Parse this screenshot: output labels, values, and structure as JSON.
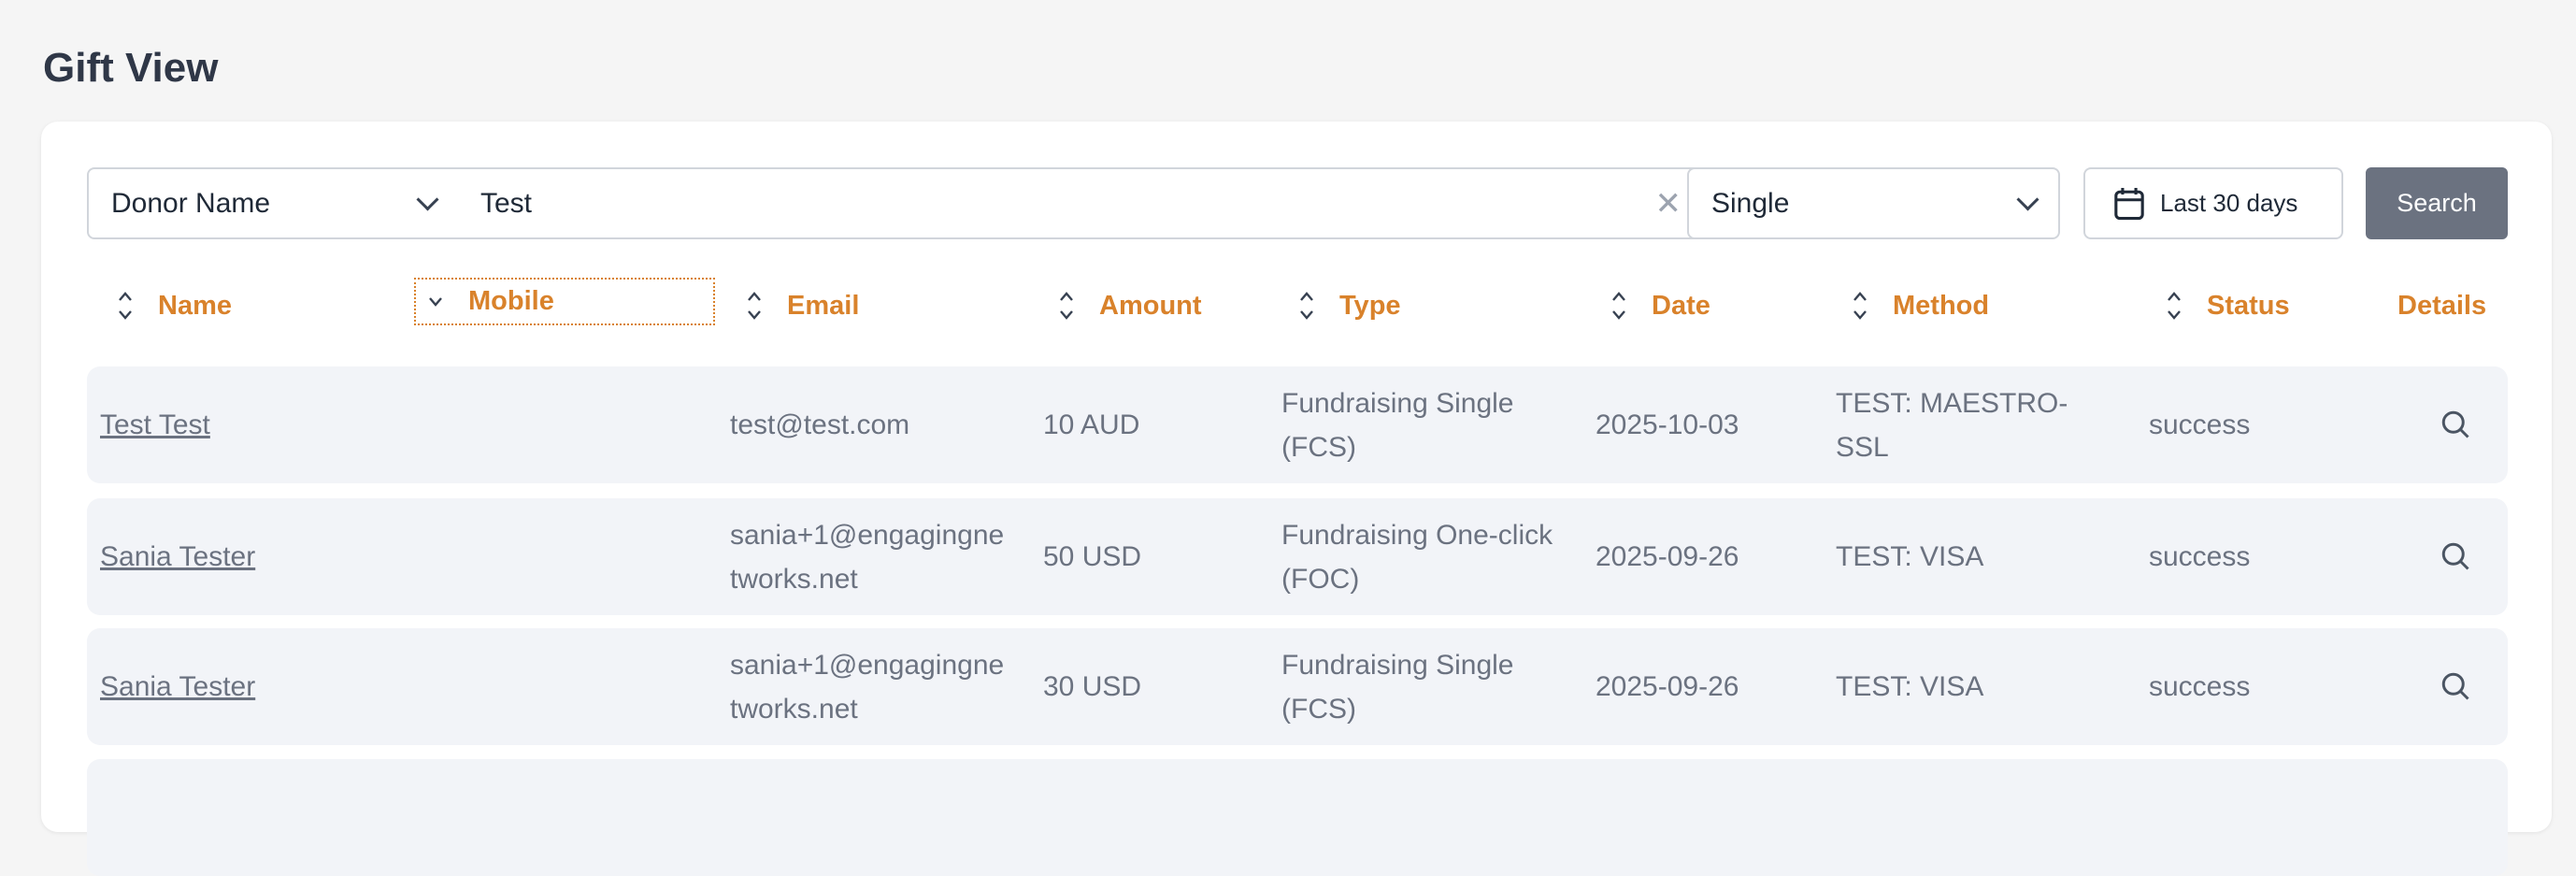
{
  "page": {
    "title": "Gift View"
  },
  "filters": {
    "field_select": "Donor Name",
    "query": "Test",
    "type_select": "Single",
    "date_range": "Last 30 days",
    "search_label": "Search"
  },
  "table": {
    "columns": [
      "Name",
      "Mobile",
      "Email",
      "Amount",
      "Type",
      "Date",
      "Method",
      "Status",
      "Details"
    ],
    "rows": [
      {
        "name": "Test Test",
        "mobile": "",
        "email": "test@test.com",
        "amount": "10 AUD",
        "type": "Fundraising Single (FCS)",
        "date": "2025-10-03",
        "method": "TEST: MAESTRO-SSL",
        "status": "success"
      },
      {
        "name": "Sania Tester",
        "mobile": "",
        "email": "sania+1@engagingne tworks.net",
        "amount": "50 USD",
        "type": "Fundraising One-click (FOC)",
        "date": "2025-09-26",
        "method": "TEST: VISA",
        "status": "success"
      },
      {
        "name": "Sania Tester",
        "mobile": "",
        "email": "sania+1@engagingne tworks.net",
        "amount": "30 USD",
        "type": "Fundraising Single (FCS)",
        "date": "2025-09-26",
        "method": "TEST: VISA",
        "status": "success"
      }
    ]
  },
  "colors": {
    "accent": "#d9822b",
    "search_button": "#6b7280",
    "row_bg": "#f2f4f8"
  },
  "icons": {
    "sort": "sort-icon",
    "calendar": "calendar-icon",
    "details": "search-icon",
    "clear": "close-icon"
  }
}
